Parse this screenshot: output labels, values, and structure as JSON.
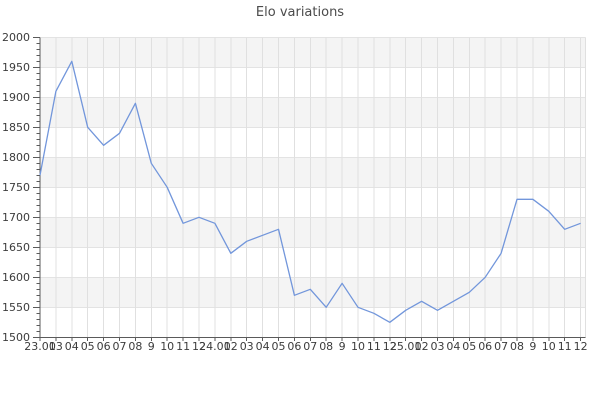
{
  "chart_data": {
    "type": "line",
    "title": "Elo variations",
    "categories": [
      "23.01",
      "03",
      "04",
      "05",
      "06",
      "07",
      "08",
      "9",
      "10",
      "11",
      "12",
      "24.01",
      "02",
      "03",
      "04",
      "05",
      "06",
      "07",
      "08",
      "9",
      "10",
      "11",
      "12",
      "25.01",
      "02",
      "03",
      "04",
      "05",
      "06",
      "07",
      "08",
      "9",
      "10",
      "11",
      "12"
    ],
    "values": [
      1770,
      1910,
      1960,
      1850,
      1820,
      1840,
      1890,
      1790,
      1750,
      1690,
      1700,
      1690,
      1640,
      1660,
      1670,
      1680,
      1570,
      1580,
      1550,
      1590,
      1550,
      1540,
      1525,
      1545,
      1560,
      1545,
      1560,
      1575,
      1600,
      1640,
      1730,
      1730,
      1710,
      1680,
      1690
    ],
    "xlabel": "",
    "ylabel": "",
    "ylim": [
      1500,
      2000
    ],
    "y_tick_step": 50,
    "y_minor_tick_step": 10,
    "y_tick_labels": [
      "2000",
      "1950",
      "1900",
      "1850",
      "1800",
      "1750",
      "1700",
      "1650",
      "1600",
      "1550",
      "1500"
    ],
    "grid": "on",
    "legend": "none",
    "line_color": "#7296db",
    "band_color": "#f4f4f4",
    "grid_color": "#e0e0e0",
    "hgrid_color": "#e3e3e3",
    "axis_color": "#5a5a5a",
    "label_color": "#3c3c3c",
    "title_color": "#4b4b4b"
  }
}
